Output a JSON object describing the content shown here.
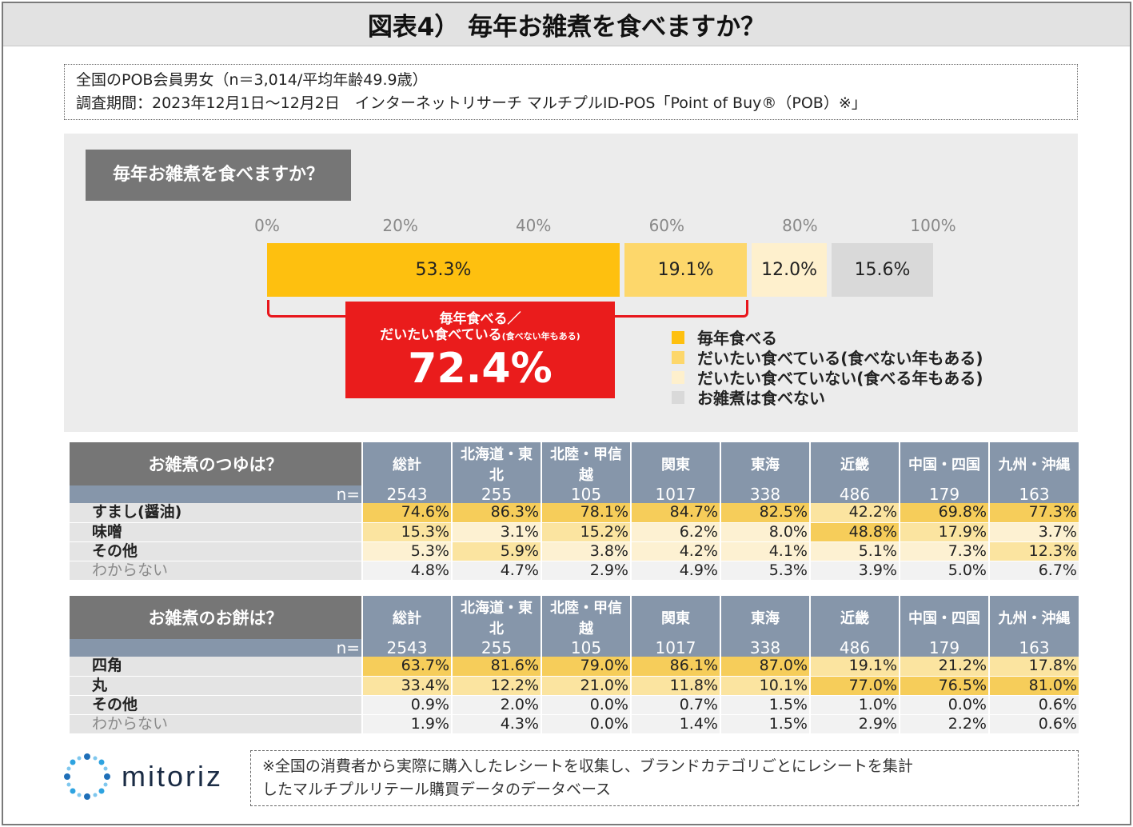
{
  "title": "図表4） 毎年お雑煮を食べますか？",
  "survey": {
    "line1": "全国のPOB会員男女（n＝3,014/平均年齢49.9歳）",
    "line2": "調査期間：2023年12月1日～12月2日　インターネットリサーチ マルチプルID-POS「Point of Buy®（POB）※」"
  },
  "question_label": "毎年お雑煮を食べますか？",
  "callout": {
    "line1": "毎年食べる／",
    "line2": "だいたい食べている",
    "line2_small": "(食べない年もある)",
    "value": "72.4%"
  },
  "colors": {
    "seg1": "#fec00f",
    "seg2": "#fdd76b",
    "seg3": "#fef0cd",
    "seg4": "#d9d9d9",
    "accent": "#ea1c1c"
  },
  "chart_data": {
    "type": "bar",
    "orientation": "horizontal-stacked",
    "title": "毎年お雑煮を食べますか？",
    "xlim": [
      0,
      100
    ],
    "ticks": [
      "0%",
      "20%",
      "40%",
      "60%",
      "80%",
      "100%"
    ],
    "tick_values": [
      0,
      20,
      40,
      60,
      80,
      100
    ],
    "series": [
      {
        "name": "毎年食べる",
        "value": 53.3,
        "label": "53.3%",
        "color": "#fec00f"
      },
      {
        "name": "だいたい食べている(食べない年もある)",
        "value": 19.1,
        "label": "19.1%",
        "color": "#fdd76b"
      },
      {
        "name": "だいたい食べていない(食べる年もある)",
        "value": 12.0,
        "label": "12.0%",
        "color": "#fef0cd"
      },
      {
        "name": "お雑煮は食べない",
        "value": 15.6,
        "label": "15.6%",
        "color": "#d9d9d9"
      }
    ],
    "legend_position": "bottom-right"
  },
  "legend": [
    {
      "label": "毎年食べる",
      "color": "#fec00f"
    },
    {
      "label": "だいたい食べている(食べない年もある)",
      "color": "#fdd76b"
    },
    {
      "label": "だいたい食べていない(食べる年もある)",
      "color": "#fef0cd"
    },
    {
      "label": "お雑煮は食べない",
      "color": "#d9d9d9"
    }
  ],
  "regions": [
    "総計",
    "北海道・東北",
    "北陸・甲信越",
    "関東",
    "東海",
    "近畿",
    "中国・四国",
    "九州・沖縄"
  ],
  "n_label": "n=",
  "n_values": [
    "2543",
    "255",
    "105",
    "1017",
    "338",
    "486",
    "179",
    "163"
  ],
  "table1": {
    "question": "お雑煮のつゆは？",
    "rows": [
      {
        "label": "すまし(醤油)",
        "muted": false,
        "values": [
          "74.6%",
          "86.3%",
          "78.1%",
          "84.7%",
          "82.5%",
          "42.2%",
          "69.8%",
          "77.3%"
        ],
        "shade": [
          "hi",
          "hi",
          "hi",
          "hi",
          "hi",
          "md",
          "hi",
          "hi"
        ]
      },
      {
        "label": "味噌",
        "muted": false,
        "values": [
          "15.3%",
          "3.1%",
          "15.2%",
          "6.2%",
          "8.0%",
          "48.8%",
          "17.9%",
          "3.7%"
        ],
        "shade": [
          "md",
          "lo",
          "md",
          "lo",
          "lo",
          "hi",
          "md",
          "lo"
        ]
      },
      {
        "label": "その他",
        "muted": false,
        "values": [
          "5.3%",
          "5.9%",
          "3.8%",
          "4.2%",
          "4.1%",
          "5.1%",
          "7.3%",
          "12.3%"
        ],
        "shade": [
          "lo",
          "md",
          "lo",
          "lo",
          "lo",
          "lo",
          "lo",
          "md"
        ]
      },
      {
        "label": "わからない",
        "muted": true,
        "values": [
          "4.8%",
          "4.7%",
          "2.9%",
          "4.9%",
          "5.3%",
          "3.9%",
          "5.0%",
          "6.7%"
        ],
        "shade": [
          "no",
          "no",
          "no",
          "no",
          "no",
          "no",
          "no",
          "no"
        ]
      }
    ]
  },
  "table2": {
    "question": "お雑煮のお餅は？",
    "rows": [
      {
        "label": "四角",
        "muted": false,
        "values": [
          "63.7%",
          "81.6%",
          "79.0%",
          "86.1%",
          "87.0%",
          "19.1%",
          "21.2%",
          "17.8%"
        ],
        "shade": [
          "hi",
          "hi",
          "hi",
          "hi",
          "hi",
          "md",
          "md",
          "md"
        ]
      },
      {
        "label": "丸",
        "muted": false,
        "values": [
          "33.4%",
          "12.2%",
          "21.0%",
          "11.8%",
          "10.1%",
          "77.0%",
          "76.5%",
          "81.0%"
        ],
        "shade": [
          "md",
          "md",
          "md",
          "md",
          "md",
          "hi",
          "hi",
          "hi"
        ]
      },
      {
        "label": "その他",
        "muted": false,
        "values": [
          "0.9%",
          "2.0%",
          "0.0%",
          "0.7%",
          "1.5%",
          "1.0%",
          "0.0%",
          "0.6%"
        ],
        "shade": [
          "no",
          "no",
          "no",
          "no",
          "no",
          "no",
          "no",
          "no"
        ]
      },
      {
        "label": "わからない",
        "muted": true,
        "values": [
          "1.9%",
          "4.3%",
          "0.0%",
          "1.4%",
          "1.5%",
          "2.9%",
          "2.2%",
          "0.6%"
        ],
        "shade": [
          "no",
          "no",
          "no",
          "no",
          "no",
          "no",
          "no",
          "no"
        ]
      }
    ]
  },
  "logo_text": "mitoriz",
  "note": {
    "line1": "※全国の消費者から実際に購入したレシートを収集し、ブランドカテゴリごとにレシートを集計",
    "line2": "したマルチプルリテール購買データのデータベース"
  }
}
